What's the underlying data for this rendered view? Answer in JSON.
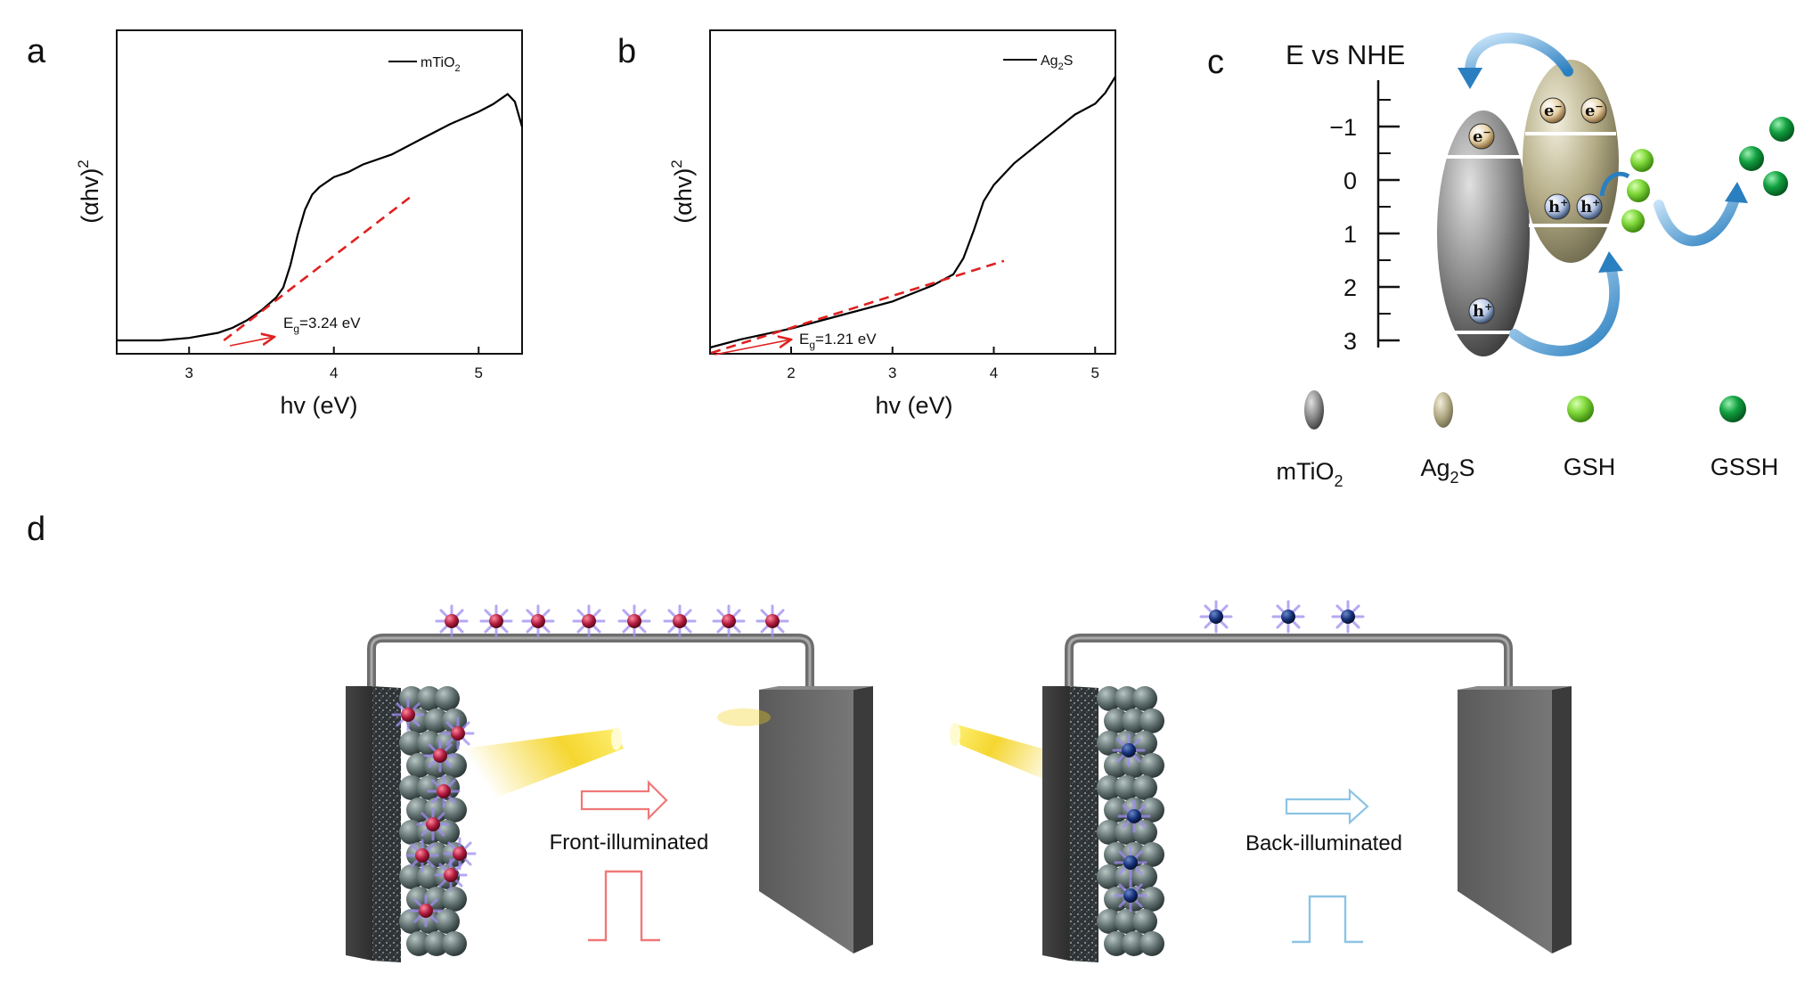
{
  "panels": {
    "a": "a",
    "b": "b",
    "c": "c",
    "d": "d"
  },
  "chart_data": [
    {
      "panel": "a",
      "type": "line",
      "title": "",
      "xlabel": "hv (eV)",
      "ylabel": "(αhv)",
      "ylabel_superscript": "2",
      "xlim": [
        2.5,
        5.3
      ],
      "ylim": [
        0,
        1
      ],
      "xticks": [
        3,
        4,
        5
      ],
      "xtick_labels": [
        "3",
        "4",
        "5"
      ],
      "legend_base": "mTiO",
      "legend_sub": "2",
      "annotation_base": "E",
      "annotation_sub": "g",
      "annotation_value": "=3.24 eV",
      "series": [
        {
          "name": "mTiO2",
          "x": [
            2.5,
            2.8,
            3.0,
            3.2,
            3.3,
            3.4,
            3.5,
            3.6,
            3.65,
            3.7,
            3.75,
            3.8,
            3.85,
            3.9,
            4.0,
            4.1,
            4.2,
            4.4,
            4.6,
            4.8,
            5.0,
            5.1,
            5.2,
            5.25,
            5.3
          ],
          "y": [
            0.0,
            0.0,
            0.01,
            0.03,
            0.05,
            0.08,
            0.12,
            0.17,
            0.21,
            0.3,
            0.42,
            0.52,
            0.58,
            0.61,
            0.65,
            0.67,
            0.7,
            0.74,
            0.8,
            0.86,
            0.91,
            0.94,
            0.98,
            0.95,
            0.85
          ]
        }
      ],
      "tangent": {
        "x": [
          3.24,
          4.55
        ],
        "y": [
          0.0,
          0.58
        ]
      }
    },
    {
      "panel": "b",
      "type": "line",
      "title": "",
      "xlabel": "hv (eV)",
      "ylabel": "(αhv)",
      "ylabel_superscript": "2",
      "xlim": [
        1.2,
        5.2
      ],
      "ylim": [
        0,
        1
      ],
      "xticks": [
        2,
        3,
        4,
        5
      ],
      "xtick_labels": [
        "2",
        "3",
        "4",
        "5"
      ],
      "legend_base": "Ag",
      "legend_sub": "2",
      "legend_tail": "S",
      "annotation_base": "E",
      "annotation_sub": "g",
      "annotation_value": "=1.21 eV",
      "series": [
        {
          "name": "Ag2S",
          "x": [
            1.2,
            1.5,
            2.0,
            2.5,
            3.0,
            3.4,
            3.6,
            3.7,
            3.8,
            3.9,
            4.0,
            4.2,
            4.4,
            4.6,
            4.8,
            5.0,
            5.1,
            5.2
          ],
          "y": [
            0.0,
            0.03,
            0.07,
            0.12,
            0.17,
            0.23,
            0.27,
            0.33,
            0.43,
            0.54,
            0.6,
            0.68,
            0.74,
            0.8,
            0.86,
            0.9,
            0.94,
            1.0
          ]
        }
      ],
      "tangent": {
        "x": [
          1.21,
          4.1
        ],
        "y": [
          -0.02,
          0.32
        ]
      }
    }
  ],
  "energy_diagram": {
    "axis_title": "E vs NHE",
    "ticks": [
      "−1",
      "0",
      "1",
      "2",
      "3"
    ],
    "tick_values": [
      -1,
      0,
      1,
      2,
      3
    ],
    "electron_label": "e",
    "electron_sup": "−",
    "hole_label": "h",
    "hole_sup": "+"
  },
  "legend_key": [
    {
      "base": "mTiO",
      "sub": "2",
      "tail": ""
    },
    {
      "base": "Ag",
      "sub": "2",
      "tail": "S"
    },
    {
      "base": "GSH",
      "sub": "",
      "tail": ""
    },
    {
      "base": "GSSH",
      "sub": "",
      "tail": ""
    }
  ],
  "illumination": {
    "front_label": "Front-illuminated",
    "back_label": "Back-illuminated"
  },
  "colors": {
    "curve": "#000000",
    "tangent": "#e02020",
    "front_arrow": "#f07878",
    "back_arrow": "#8cc4e4",
    "tio2": "#808080",
    "ag2s": "#b8b08a",
    "gsh": "#7fd83a",
    "gssh": "#11a040",
    "blue_arrow": "#2a7fc0"
  }
}
